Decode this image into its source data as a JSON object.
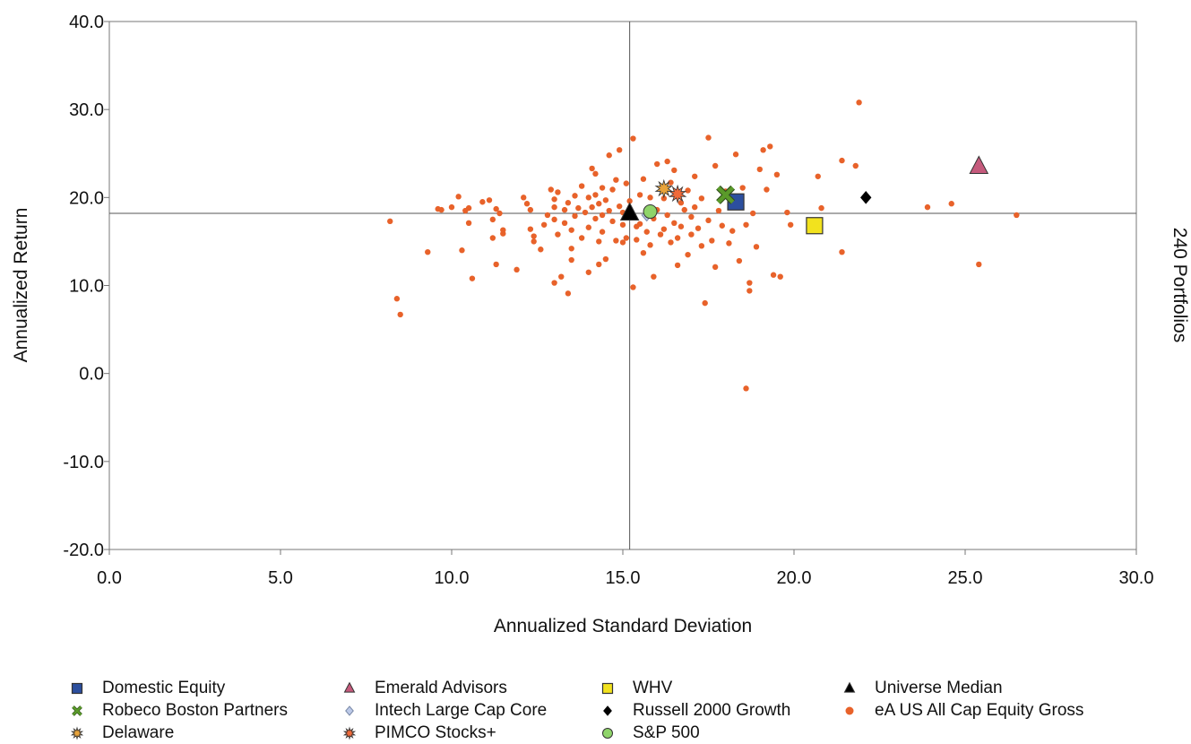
{
  "chart_data": {
    "type": "scatter",
    "xlabel": "Annualized Standard Deviation",
    "ylabel": "Annualized Return",
    "right_label": "240 Portfolios",
    "xlim": [
      0,
      30
    ],
    "ylim": [
      -20,
      40
    ],
    "x_ticks": [
      "0.0",
      "5.0",
      "10.0",
      "15.0",
      "20.0",
      "25.0",
      "30.0"
    ],
    "y_ticks": [
      "40.0",
      "30.0",
      "20.0",
      "10.0",
      "0.0",
      "-10.0",
      "-20.0"
    ],
    "grid": false,
    "median_lines": {
      "x": 15.2,
      "y": 18.2
    },
    "legend_position": "bottom",
    "series": [
      {
        "name": "Domestic Equity",
        "marker": "square",
        "color": "#2c4f9e",
        "x": 18.3,
        "y": 19.5
      },
      {
        "name": "Robeco Boston Partners",
        "marker": "x",
        "color": "#5a9a2a",
        "x": 18.0,
        "y": 20.3
      },
      {
        "name": "Delaware",
        "marker": "star",
        "color": "#e8a33a",
        "x": 16.2,
        "y": 21.0
      },
      {
        "name": "Emerald Advisors",
        "marker": "triangle",
        "color": "#c55a7c",
        "x": 25.4,
        "y": 23.5
      },
      {
        "name": "Intech Large Cap Core",
        "marker": "diamond",
        "color": "#bcc9e8",
        "x": 15.7,
        "y": 18.0
      },
      {
        "name": "PIMCO Stocks+",
        "marker": "star",
        "color": "#f06a3a",
        "x": 16.6,
        "y": 20.4
      },
      {
        "name": "WHV",
        "marker": "square",
        "color": "#f2e21e",
        "x": 20.6,
        "y": 16.8
      },
      {
        "name": "Russell 2000 Growth",
        "marker": "diamond",
        "color": "#000000",
        "x": 22.1,
        "y": 20.0
      },
      {
        "name": "S&P 500",
        "marker": "circle",
        "color": "#8fd46a",
        "x": 15.8,
        "y": 18.4
      },
      {
        "name": "Universe Median",
        "marker": "triangle",
        "color": "#000000",
        "x": 15.2,
        "y": 18.2
      },
      {
        "name": "eA US All Cap Equity Gross",
        "marker": "dot",
        "color": "#e8622a",
        "points": [
          [
            8.2,
            17.3
          ],
          [
            8.4,
            8.5
          ],
          [
            8.5,
            6.7
          ],
          [
            9.3,
            13.8
          ],
          [
            9.6,
            18.7
          ],
          [
            9.7,
            18.6
          ],
          [
            10.0,
            18.9
          ],
          [
            10.2,
            20.1
          ],
          [
            10.3,
            14.0
          ],
          [
            10.4,
            18.5
          ],
          [
            10.5,
            17.1
          ],
          [
            10.5,
            18.8
          ],
          [
            10.6,
            10.8
          ],
          [
            10.9,
            19.5
          ],
          [
            11.1,
            19.7
          ],
          [
            11.2,
            17.5
          ],
          [
            11.2,
            15.4
          ],
          [
            11.3,
            12.4
          ],
          [
            11.3,
            18.7
          ],
          [
            11.4,
            18.2
          ],
          [
            11.5,
            16.3
          ],
          [
            11.5,
            15.9
          ],
          [
            11.9,
            11.8
          ],
          [
            12.1,
            20.0
          ],
          [
            12.2,
            19.3
          ],
          [
            12.3,
            18.6
          ],
          [
            12.3,
            16.4
          ],
          [
            12.4,
            15.0
          ],
          [
            12.4,
            15.6
          ],
          [
            12.6,
            14.1
          ],
          [
            12.7,
            16.9
          ],
          [
            12.8,
            18.0
          ],
          [
            12.9,
            20.9
          ],
          [
            13.0,
            19.8
          ],
          [
            13.0,
            18.9
          ],
          [
            13.0,
            17.5
          ],
          [
            13.0,
            10.3
          ],
          [
            13.1,
            15.8
          ],
          [
            13.1,
            20.6
          ],
          [
            13.2,
            11.0
          ],
          [
            13.3,
            18.6
          ],
          [
            13.3,
            17.1
          ],
          [
            13.4,
            19.4
          ],
          [
            13.4,
            9.1
          ],
          [
            13.5,
            16.3
          ],
          [
            13.5,
            14.2
          ],
          [
            13.5,
            12.9
          ],
          [
            13.6,
            17.9
          ],
          [
            13.6,
            20.2
          ],
          [
            13.7,
            18.8
          ],
          [
            13.8,
            15.4
          ],
          [
            13.8,
            21.3
          ],
          [
            13.9,
            18.3
          ],
          [
            14.0,
            20.0
          ],
          [
            14.0,
            16.6
          ],
          [
            14.0,
            11.5
          ],
          [
            14.1,
            23.3
          ],
          [
            14.1,
            18.9
          ],
          [
            14.2,
            22.7
          ],
          [
            14.2,
            20.3
          ],
          [
            14.2,
            17.6
          ],
          [
            14.3,
            19.3
          ],
          [
            14.3,
            15.0
          ],
          [
            14.3,
            12.4
          ],
          [
            14.4,
            21.1
          ],
          [
            14.4,
            18.0
          ],
          [
            14.4,
            16.1
          ],
          [
            14.5,
            19.7
          ],
          [
            14.5,
            13.0
          ],
          [
            14.6,
            24.8
          ],
          [
            14.6,
            18.5
          ],
          [
            14.7,
            20.9
          ],
          [
            14.7,
            17.3
          ],
          [
            14.8,
            15.1
          ],
          [
            14.8,
            22.0
          ],
          [
            14.9,
            25.4
          ],
          [
            14.9,
            19.0
          ],
          [
            15.0,
            16.9
          ],
          [
            15.0,
            18.3
          ],
          [
            15.0,
            14.9
          ],
          [
            15.1,
            21.6
          ],
          [
            15.1,
            15.4
          ],
          [
            15.2,
            19.6
          ],
          [
            15.3,
            26.7
          ],
          [
            15.3,
            17.8
          ],
          [
            15.3,
            9.8
          ],
          [
            15.4,
            16.7
          ],
          [
            15.4,
            15.2
          ],
          [
            15.5,
            20.3
          ],
          [
            15.5,
            17.0
          ],
          [
            15.6,
            13.7
          ],
          [
            15.6,
            22.1
          ],
          [
            15.7,
            16.1
          ],
          [
            15.8,
            20.0
          ],
          [
            15.8,
            14.6
          ],
          [
            15.9,
            11.0
          ],
          [
            15.9,
            17.6
          ],
          [
            16.0,
            23.8
          ],
          [
            16.0,
            18.6
          ],
          [
            16.1,
            15.8
          ],
          [
            16.2,
            19.9
          ],
          [
            16.2,
            16.4
          ],
          [
            16.3,
            24.1
          ],
          [
            16.3,
            18.0
          ],
          [
            16.4,
            14.9
          ],
          [
            16.4,
            21.7
          ],
          [
            16.5,
            23.1
          ],
          [
            16.5,
            17.1
          ],
          [
            16.6,
            15.4
          ],
          [
            16.6,
            12.3
          ],
          [
            16.7,
            19.4
          ],
          [
            16.7,
            16.7
          ],
          [
            16.8,
            18.6
          ],
          [
            16.9,
            13.5
          ],
          [
            16.9,
            20.8
          ],
          [
            17.0,
            17.8
          ],
          [
            17.0,
            15.8
          ],
          [
            17.1,
            22.4
          ],
          [
            17.1,
            18.9
          ],
          [
            17.2,
            16.5
          ],
          [
            17.3,
            14.5
          ],
          [
            17.3,
            19.9
          ],
          [
            17.4,
            8.0
          ],
          [
            17.5,
            26.8
          ],
          [
            17.5,
            17.4
          ],
          [
            17.6,
            15.1
          ],
          [
            17.7,
            23.6
          ],
          [
            17.7,
            12.1
          ],
          [
            17.8,
            18.5
          ],
          [
            17.9,
            16.8
          ],
          [
            18.0,
            20.7
          ],
          [
            18.1,
            14.8
          ],
          [
            18.2,
            16.2
          ],
          [
            18.3,
            24.9
          ],
          [
            18.4,
            12.8
          ],
          [
            18.5,
            21.1
          ],
          [
            18.6,
            16.9
          ],
          [
            18.6,
            -1.7
          ],
          [
            18.7,
            10.3
          ],
          [
            18.7,
            9.4
          ],
          [
            18.8,
            18.2
          ],
          [
            18.9,
            14.4
          ],
          [
            19.0,
            23.2
          ],
          [
            19.1,
            25.4
          ],
          [
            19.2,
            20.9
          ],
          [
            19.3,
            25.8
          ],
          [
            19.4,
            11.2
          ],
          [
            19.5,
            22.6
          ],
          [
            19.6,
            11.0
          ],
          [
            19.8,
            18.3
          ],
          [
            19.9,
            16.9
          ],
          [
            20.7,
            22.4
          ],
          [
            20.8,
            18.8
          ],
          [
            21.4,
            24.2
          ],
          [
            21.4,
            13.8
          ],
          [
            21.8,
            23.6
          ],
          [
            21.9,
            30.8
          ],
          [
            23.9,
            18.9
          ],
          [
            24.6,
            19.3
          ],
          [
            25.4,
            12.4
          ],
          [
            26.5,
            18.0
          ]
        ]
      }
    ]
  }
}
